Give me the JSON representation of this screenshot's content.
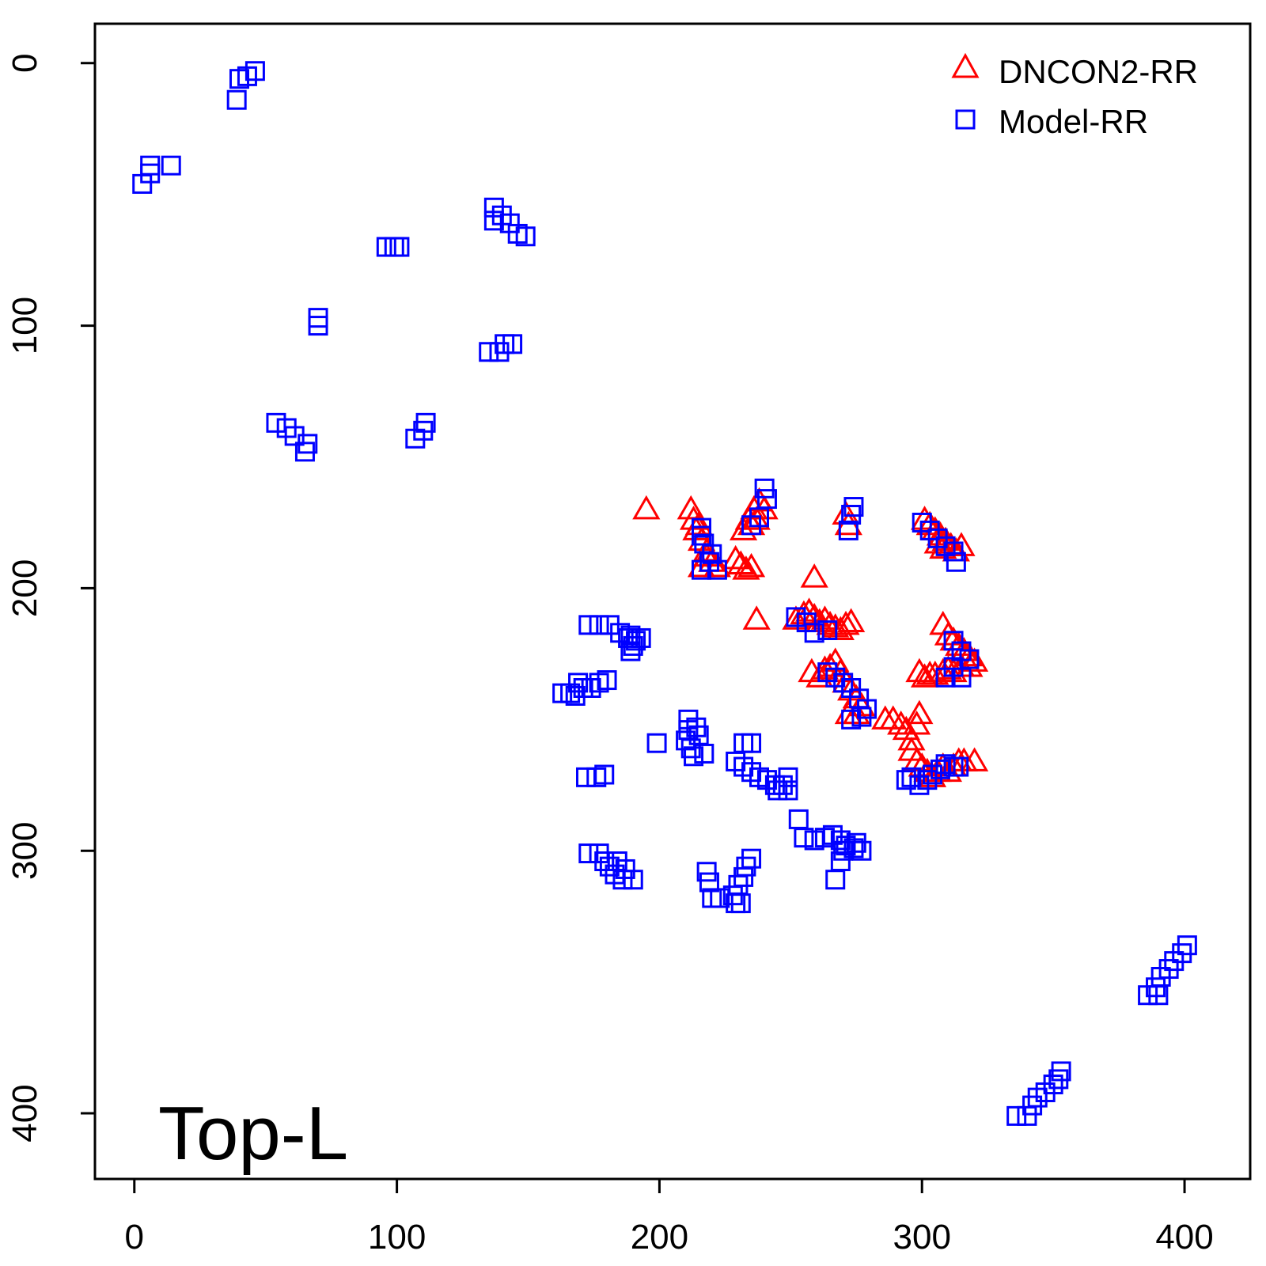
{
  "chart_data": {
    "type": "scatter",
    "title": "",
    "xlabel": "",
    "ylabel": "",
    "xlim": [
      -15,
      425
    ],
    "ylim": [
      -15,
      425
    ],
    "y_reversed": true,
    "x_ticks": [
      0,
      100,
      200,
      300,
      400
    ],
    "y_ticks": [
      0,
      100,
      200,
      300,
      400
    ],
    "annotation": "Top-L",
    "legend_position": "top-right",
    "series": [
      {
        "name": "DNCON2-RR",
        "marker": "triangle",
        "color": "#ff0000",
        "points": [
          [
            195,
            170
          ],
          [
            212,
            170
          ],
          [
            213,
            174
          ],
          [
            214,
            178
          ],
          [
            216,
            182
          ],
          [
            218,
            186
          ],
          [
            220,
            190
          ],
          [
            222,
            192
          ],
          [
            216,
            192
          ],
          [
            218,
            188
          ],
          [
            215,
            176
          ],
          [
            232,
            178
          ],
          [
            234,
            174
          ],
          [
            236,
            170
          ],
          [
            238,
            167
          ],
          [
            240,
            170
          ],
          [
            237,
            174
          ],
          [
            235,
            176
          ],
          [
            229,
            189
          ],
          [
            231,
            191
          ],
          [
            233,
            193
          ],
          [
            235,
            192
          ],
          [
            237,
            212
          ],
          [
            259,
            196
          ],
          [
            271,
            172
          ],
          [
            272,
            176
          ],
          [
            301,
            174
          ],
          [
            303,
            176
          ],
          [
            305,
            178
          ],
          [
            307,
            180
          ],
          [
            309,
            182
          ],
          [
            311,
            184
          ],
          [
            313,
            186
          ],
          [
            315,
            184
          ],
          [
            306,
            183
          ],
          [
            308,
            185
          ],
          [
            252,
            212
          ],
          [
            255,
            210
          ],
          [
            257,
            209
          ],
          [
            259,
            211
          ],
          [
            261,
            213
          ],
          [
            263,
            212
          ],
          [
            265,
            214
          ],
          [
            267,
            215
          ],
          [
            269,
            216
          ],
          [
            271,
            214
          ],
          [
            273,
            213
          ],
          [
            258,
            232
          ],
          [
            261,
            234
          ],
          [
            263,
            231
          ],
          [
            265,
            230
          ],
          [
            267,
            228
          ],
          [
            269,
            232
          ],
          [
            271,
            236
          ],
          [
            273,
            239
          ],
          [
            275,
            242
          ],
          [
            277,
            245
          ],
          [
            272,
            248
          ],
          [
            275,
            248
          ],
          [
            308,
            214
          ],
          [
            310,
            218
          ],
          [
            312,
            220
          ],
          [
            314,
            222
          ],
          [
            316,
            224
          ],
          [
            318,
            226
          ],
          [
            320,
            228
          ],
          [
            318,
            230
          ],
          [
            315,
            230
          ],
          [
            312,
            232
          ],
          [
            310,
            231
          ],
          [
            299,
            232
          ],
          [
            301,
            234
          ],
          [
            303,
            233
          ],
          [
            305,
            233
          ],
          [
            308,
            232
          ],
          [
            286,
            250
          ],
          [
            289,
            250
          ],
          [
            292,
            252
          ],
          [
            294,
            254
          ],
          [
            296,
            258
          ],
          [
            298,
            252
          ],
          [
            299,
            248
          ],
          [
            296,
            262
          ],
          [
            298,
            266
          ],
          [
            300,
            268
          ],
          [
            302,
            270
          ],
          [
            304,
            272
          ],
          [
            306,
            270
          ],
          [
            308,
            268
          ],
          [
            310,
            270
          ],
          [
            312,
            268
          ],
          [
            314,
            266
          ],
          [
            316,
            266
          ],
          [
            320,
            266
          ]
        ]
      },
      {
        "name": "Model-RR",
        "marker": "square",
        "color": "#0000ff",
        "points": [
          [
            40,
            6
          ],
          [
            43,
            5
          ],
          [
            46,
            3
          ],
          [
            39,
            14
          ],
          [
            3,
            46
          ],
          [
            6,
            42
          ],
          [
            6,
            39
          ],
          [
            14,
            39
          ],
          [
            137,
            55
          ],
          [
            140,
            58
          ],
          [
            143,
            61
          ],
          [
            146,
            65
          ],
          [
            137,
            60
          ],
          [
            149,
            66
          ],
          [
            96,
            70
          ],
          [
            99,
            70
          ],
          [
            101,
            70
          ],
          [
            70,
            97
          ],
          [
            70,
            100
          ],
          [
            135,
            110
          ],
          [
            139,
            110
          ],
          [
            141,
            107
          ],
          [
            144,
            107
          ],
          [
            54,
            137
          ],
          [
            58,
            139
          ],
          [
            61,
            142
          ],
          [
            66,
            145
          ],
          [
            65,
            148
          ],
          [
            107,
            143
          ],
          [
            110,
            140
          ],
          [
            111,
            137
          ],
          [
            240,
            162
          ],
          [
            241,
            166
          ],
          [
            238,
            173
          ],
          [
            235,
            176
          ],
          [
            216,
            177
          ],
          [
            216,
            180
          ],
          [
            217,
            183
          ],
          [
            220,
            187
          ],
          [
            219,
            190
          ],
          [
            222,
            193
          ],
          [
            216,
            193
          ],
          [
            274,
            169
          ],
          [
            273,
            172
          ],
          [
            272,
            178
          ],
          [
            300,
            175
          ],
          [
            303,
            178
          ],
          [
            306,
            181
          ],
          [
            309,
            184
          ],
          [
            312,
            186
          ],
          [
            313,
            190
          ],
          [
            173,
            214
          ],
          [
            177,
            214
          ],
          [
            181,
            214
          ],
          [
            185,
            217
          ],
          [
            189,
            218
          ],
          [
            191,
            220
          ],
          [
            193,
            219
          ],
          [
            190,
            222
          ],
          [
            189,
            224
          ],
          [
            188,
            219
          ],
          [
            252,
            211
          ],
          [
            256,
            213
          ],
          [
            259,
            217
          ],
          [
            264,
            216
          ],
          [
            163,
            240
          ],
          [
            166,
            240
          ],
          [
            168,
            241
          ],
          [
            171,
            238
          ],
          [
            174,
            238
          ],
          [
            177,
            236
          ],
          [
            180,
            235
          ],
          [
            169,
            236
          ],
          [
            264,
            232
          ],
          [
            267,
            234
          ],
          [
            270,
            236
          ],
          [
            273,
            238
          ],
          [
            276,
            242
          ],
          [
            279,
            246
          ],
          [
            277,
            249
          ],
          [
            273,
            250
          ],
          [
            312,
            220
          ],
          [
            315,
            224
          ],
          [
            318,
            227
          ],
          [
            312,
            230
          ],
          [
            315,
            234
          ],
          [
            309,
            234
          ],
          [
            199,
            259
          ],
          [
            210,
            258
          ],
          [
            212,
            261
          ],
          [
            211,
            254
          ],
          [
            211,
            250
          ],
          [
            214,
            253
          ],
          [
            215,
            256
          ],
          [
            217,
            263
          ],
          [
            213,
            264
          ],
          [
            172,
            272
          ],
          [
            176,
            272
          ],
          [
            179,
            271
          ],
          [
            232,
            259
          ],
          [
            235,
            259
          ],
          [
            229,
            266
          ],
          [
            232,
            268
          ],
          [
            235,
            270
          ],
          [
            238,
            272
          ],
          [
            241,
            273
          ],
          [
            244,
            275
          ],
          [
            247,
            275
          ],
          [
            249,
            272
          ],
          [
            249,
            277
          ],
          [
            245,
            277
          ],
          [
            294,
            273
          ],
          [
            296,
            272
          ],
          [
            299,
            275
          ],
          [
            302,
            273
          ],
          [
            304,
            271
          ],
          [
            307,
            269
          ],
          [
            309,
            267
          ],
          [
            312,
            268
          ],
          [
            314,
            268
          ],
          [
            253,
            288
          ],
          [
            255,
            295
          ],
          [
            259,
            296
          ],
          [
            263,
            295
          ],
          [
            266,
            294
          ],
          [
            269,
            296
          ],
          [
            271,
            298
          ],
          [
            274,
            299
          ],
          [
            277,
            300
          ],
          [
            275,
            297
          ],
          [
            270,
            300
          ],
          [
            269,
            304
          ],
          [
            267,
            311
          ],
          [
            173,
            301
          ],
          [
            177,
            301
          ],
          [
            179,
            304
          ],
          [
            181,
            306
          ],
          [
            183,
            309
          ],
          [
            186,
            311
          ],
          [
            190,
            311
          ],
          [
            187,
            307
          ],
          [
            184,
            304
          ],
          [
            218,
            308
          ],
          [
            219,
            312
          ],
          [
            220,
            318
          ],
          [
            223,
            318
          ],
          [
            228,
            317
          ],
          [
            230,
            313
          ],
          [
            232,
            310
          ],
          [
            233,
            306
          ],
          [
            235,
            303
          ],
          [
            229,
            320
          ],
          [
            231,
            320
          ],
          [
            386,
            355
          ],
          [
            389,
            352
          ],
          [
            391,
            348
          ],
          [
            394,
            345
          ],
          [
            396,
            342
          ],
          [
            399,
            339
          ],
          [
            401,
            336
          ],
          [
            390,
            355
          ],
          [
            336,
            401
          ],
          [
            340,
            401
          ],
          [
            342,
            397
          ],
          [
            344,
            394
          ],
          [
            347,
            392
          ],
          [
            350,
            389
          ],
          [
            352,
            387
          ],
          [
            353,
            384
          ]
        ]
      }
    ]
  }
}
